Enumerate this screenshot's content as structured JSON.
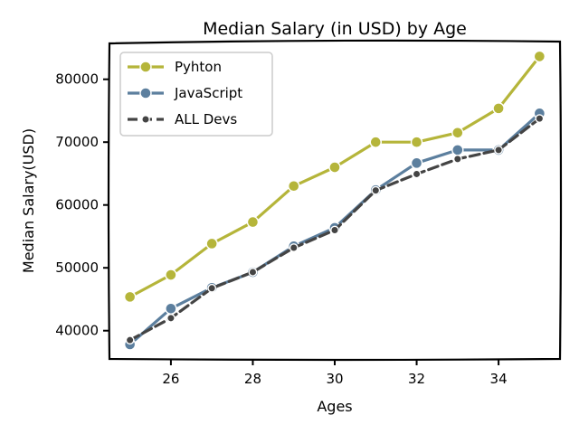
{
  "chart_data": {
    "type": "line",
    "title": "Median Salary (in USD) by Age",
    "xlabel": "Ages",
    "ylabel": "Median Salary(USD)",
    "x": [
      25,
      26,
      27,
      28,
      29,
      30,
      31,
      32,
      33,
      34,
      35
    ],
    "xlim": [
      24.5,
      35.5
    ],
    "ylim": [
      35500,
      86000
    ],
    "xticks": [
      26,
      28,
      30,
      32,
      34
    ],
    "yticks": [
      40000,
      50000,
      60000,
      70000,
      80000
    ],
    "legend_position": "top-left",
    "grid": false,
    "series": [
      {
        "name": "Pyhton",
        "color": "#b5b53a",
        "style": "solid",
        "marker": "circle",
        "values": [
          45372,
          48876,
          53850,
          57287,
          63016,
          65998,
          70003,
          70000,
          71496,
          75370,
          83640
        ]
      },
      {
        "name": "JavaScript",
        "color": "#5c7f9e",
        "style": "solid",
        "marker": "circle",
        "values": [
          37810,
          43515,
          46823,
          49293,
          53437,
          56373,
          62375,
          66674,
          68745,
          68746,
          74583
        ]
      },
      {
        "name": "ALL Devs",
        "color": "#444444",
        "style": "dashed",
        "marker": "dot",
        "values": [
          38496,
          42000,
          46752,
          49320,
          53200,
          56000,
          62316,
          64928,
          67317,
          68748,
          73752
        ]
      }
    ]
  }
}
